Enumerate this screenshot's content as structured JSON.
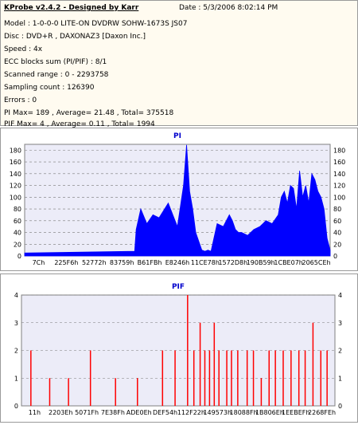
{
  "info": {
    "title": "KProbe v2.4.2 - Designed by Karr",
    "date": "Date : 5/3/2006 8:02:14 PM",
    "lines": [
      "Model : 1-0-0-0 LITE-ON DVDRW SOHW-1673S JS07",
      "Disc : DVD+R , DAXONAZ3 [Daxon Inc.]",
      "Speed : 4x",
      "ECC blocks sum (PI/PIF) : 8/1",
      "Scanned range : 0 - 2293758",
      "Sampling count : 126390",
      "Errors : 0",
      "PI Max= 189 , Average= 21.48 , Total= 375518",
      "PIF Max= 4 , Average= 0.11 , Total= 1994"
    ]
  },
  "chart_data": [
    {
      "type": "area",
      "title": "PI",
      "color": "#0000ff",
      "ylim": [
        0,
        190
      ],
      "yticks": [
        0,
        20,
        40,
        60,
        80,
        100,
        120,
        140,
        160,
        180
      ],
      "xtick_labels": [
        "7Ch",
        "225F6h",
        "52772h",
        "83759h",
        "B61FBh",
        "E8246h",
        "11CE78h",
        "1572D8h",
        "190B59h",
        "1CBE07h",
        "2065CEh"
      ],
      "x": [
        0,
        0.36,
        0.365,
        0.38,
        0.4,
        0.42,
        0.44,
        0.47,
        0.5,
        0.52,
        0.53,
        0.54,
        0.55,
        0.56,
        0.57,
        0.58,
        0.59,
        0.6,
        0.61,
        0.63,
        0.65,
        0.67,
        0.68,
        0.69,
        0.7,
        0.71,
        0.73,
        0.75,
        0.77,
        0.79,
        0.81,
        0.83,
        0.84,
        0.85,
        0.86,
        0.87,
        0.88,
        0.89,
        0.9,
        0.91,
        0.92,
        0.93,
        0.94,
        0.95,
        0.96,
        0.97,
        0.98,
        0.99,
        1.0
      ],
      "values": [
        5,
        8,
        45,
        80,
        55,
        70,
        65,
        90,
        50,
        120,
        189,
        110,
        80,
        40,
        25,
        10,
        8,
        10,
        8,
        55,
        50,
        70,
        60,
        45,
        40,
        40,
        35,
        45,
        50,
        60,
        55,
        70,
        100,
        110,
        90,
        120,
        115,
        80,
        145,
        100,
        120,
        90,
        140,
        130,
        110,
        100,
        80,
        30,
        10
      ]
    },
    {
      "type": "bar",
      "title": "PIF",
      "color": "#ff0000",
      "ylim": [
        0,
        4
      ],
      "yticks": [
        0,
        1,
        2,
        3,
        4
      ],
      "xtick_labels": [
        "11h",
        "2203Eh",
        "5071Fh",
        "7E38Fh",
        "ADE0Eh",
        "DEF54h",
        "112F22h",
        "149573h",
        "18088Fh",
        "1B806Eh",
        "1EEBEFh",
        "2268FEh"
      ],
      "x": [
        0.03,
        0.09,
        0.15,
        0.22,
        0.3,
        0.37,
        0.45,
        0.49,
        0.53,
        0.55,
        0.57,
        0.585,
        0.6,
        0.615,
        0.63,
        0.655,
        0.67,
        0.69,
        0.72,
        0.74,
        0.765,
        0.79,
        0.81,
        0.835,
        0.86,
        0.885,
        0.905,
        0.93,
        0.955,
        0.975
      ],
      "values": [
        2,
        1,
        1,
        2,
        1,
        1,
        2,
        2,
        4,
        2,
        3,
        2,
        2,
        3,
        2,
        2,
        2,
        2,
        2,
        2,
        1,
        2,
        2,
        2,
        2,
        2,
        2,
        3,
        2,
        2
      ]
    }
  ]
}
